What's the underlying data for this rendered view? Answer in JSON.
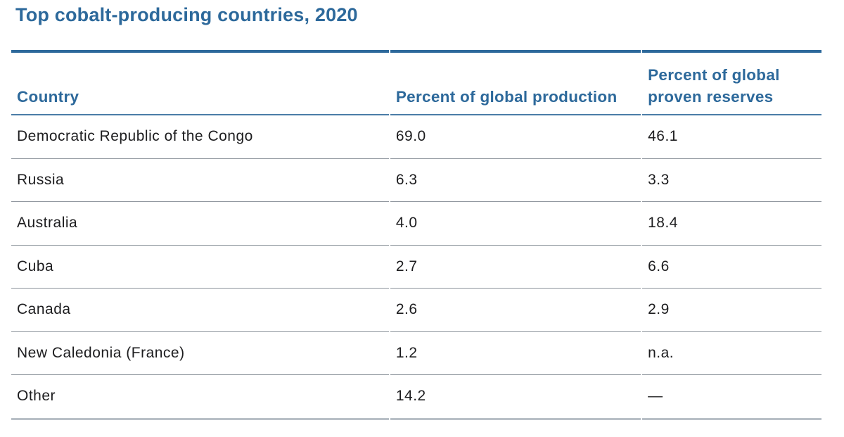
{
  "title": "Top cobalt-producing countries, 2020",
  "chart_data": {
    "type": "table",
    "title": "Top cobalt-producing countries, 2020",
    "columns": [
      "Country",
      "Percent of global production",
      "Percent of global proven reserves"
    ],
    "rows": [
      {
        "country": "Democratic Republic of the Congo",
        "production": "69.0",
        "reserves": "46.1"
      },
      {
        "country": "Russia",
        "production": "6.3",
        "reserves": "3.3"
      },
      {
        "country": "Australia",
        "production": "4.0",
        "reserves": "18.4"
      },
      {
        "country": "Cuba",
        "production": "2.7",
        "reserves": "6.6"
      },
      {
        "country": "Canada",
        "production": "2.6",
        "reserves": "2.9"
      },
      {
        "country": "New Caledonia (France)",
        "production": "1.2",
        "reserves": "n.a."
      },
      {
        "country": "Other",
        "production": "14.2",
        "reserves": "—"
      }
    ],
    "units": "percent",
    "layout": {
      "grid": "horizontal-rules-only",
      "header_position": "top"
    }
  },
  "colors": {
    "accent_blue": "#2d699b",
    "header_underline_blue": "#4b7da7",
    "row_divider_gray": "#8c939b",
    "bottom_rule_gray": "#b9c0c7",
    "body_text": "#1d1d1f",
    "background": "#ffffff"
  }
}
